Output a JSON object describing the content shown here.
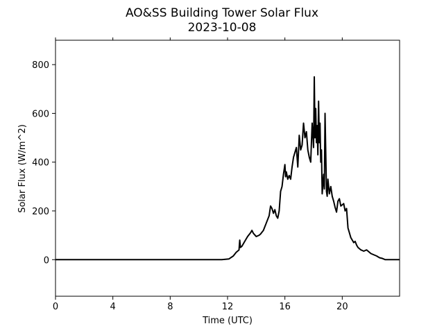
{
  "chart_data": {
    "type": "line",
    "title": "AO&SS Building Tower Solar Flux",
    "subtitle": "2023-10-08",
    "xlabel": "Time (UTC)",
    "ylabel": "Solar Flux (W/m^2)",
    "xlim": [
      0,
      24
    ],
    "ylim": [
      -150,
      900
    ],
    "xticks": [
      0,
      4,
      8,
      12,
      16,
      20
    ],
    "xtick_labels": [
      "0",
      "4",
      "8",
      "12",
      "16",
      "20"
    ],
    "yticks": [
      0,
      200,
      400,
      600,
      800
    ],
    "ytick_labels": [
      "0",
      "200",
      "400",
      "600",
      "800"
    ],
    "grid": false,
    "line_color": "#000000",
    "series": [
      {
        "x": [
          0,
          11.6,
          12.1,
          12.4,
          12.6,
          12.8,
          12.85,
          12.9,
          13.0,
          13.2,
          13.4,
          13.6,
          13.7,
          13.8,
          14.0,
          14.2,
          14.3,
          14.5,
          14.7,
          14.9,
          15.0,
          15.1,
          15.2,
          15.3,
          15.4,
          15.5,
          15.6,
          15.7,
          15.8,
          15.9,
          16.0,
          16.05,
          16.1,
          16.2,
          16.3,
          16.4,
          16.5,
          16.6,
          16.7,
          16.8,
          16.9,
          17.0,
          17.1,
          17.2,
          17.3,
          17.4,
          17.5,
          17.6,
          17.7,
          17.8,
          17.9,
          18.0,
          18.05,
          18.1,
          18.15,
          18.2,
          18.25,
          18.3,
          18.35,
          18.4,
          18.45,
          18.5,
          18.55,
          18.6,
          18.7,
          18.75,
          18.8,
          18.9,
          18.95,
          19.0,
          19.1,
          19.2,
          19.3,
          19.4,
          19.5,
          19.6,
          19.7,
          19.8,
          19.9,
          20.0,
          20.1,
          20.2,
          20.3,
          20.4,
          20.5,
          20.6,
          20.7,
          20.8,
          20.9,
          21.0,
          21.1,
          21.2,
          21.3,
          21.5,
          21.7,
          21.9,
          22.0,
          22.2,
          22.4,
          22.6,
          22.8,
          23.0,
          23.3,
          23.6,
          23.8,
          24.0
        ],
        "y": [
          0,
          0,
          3,
          15,
          30,
          40,
          80,
          50,
          55,
          75,
          95,
          110,
          120,
          108,
          95,
          100,
          105,
          120,
          150,
          180,
          220,
          210,
          190,
          205,
          180,
          170,
          200,
          280,
          300,
          350,
          390,
          340,
          360,
          330,
          345,
          330,
          380,
          420,
          440,
          460,
          380,
          510,
          450,
          470,
          560,
          500,
          525,
          450,
          420,
          400,
          560,
          460,
          750,
          500,
          620,
          480,
          550,
          430,
          650,
          480,
          560,
          400,
          450,
          270,
          350,
          290,
          600,
          280,
          260,
          330,
          270,
          300,
          260,
          240,
          215,
          195,
          240,
          250,
          220,
          225,
          230,
          200,
          210,
          130,
          110,
          90,
          80,
          70,
          75,
          60,
          50,
          45,
          40,
          35,
          40,
          30,
          25,
          20,
          15,
          8,
          5,
          0,
          0,
          0,
          0,
          0
        ]
      }
    ]
  }
}
